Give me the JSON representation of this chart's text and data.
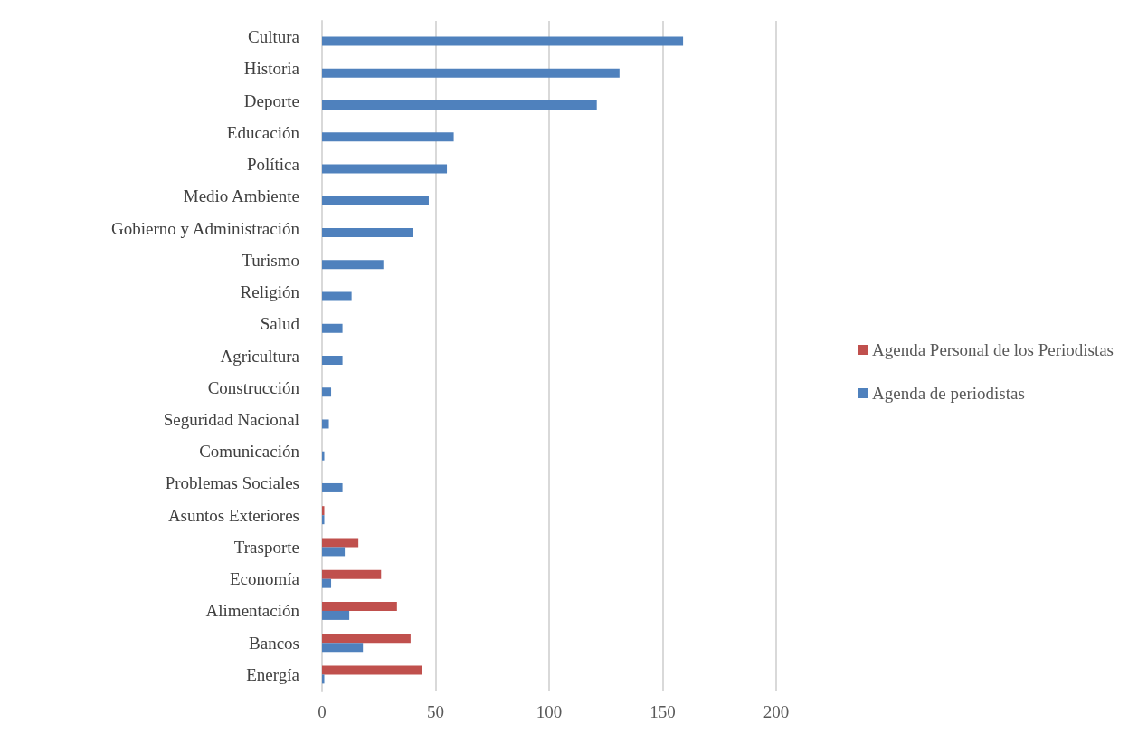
{
  "chart_data": {
    "type": "bar",
    "orientation": "horizontal",
    "categories": [
      "Cultura",
      "Historia",
      "Deporte",
      "Educación",
      "Política",
      "Medio Ambiente",
      "Gobierno y Administración",
      "Turismo",
      "Religión",
      "Salud",
      "Agricultura",
      "Construcción",
      "Seguridad Nacional",
      "Comunicación",
      "Problemas Sociales",
      "Asuntos Exteriores",
      "Trasporte",
      "Economía",
      "Alimentación",
      "Bancos",
      "Energía"
    ],
    "series": [
      {
        "name": "Agenda Personal de los Periodistas",
        "color": "#c0504d",
        "values": [
          0,
          0,
          0,
          0,
          0,
          0,
          0,
          0,
          0,
          0,
          0,
          0,
          0,
          0,
          0,
          1,
          16,
          26,
          33,
          39,
          44
        ]
      },
      {
        "name": "Agenda de periodistas",
        "color": "#4f81bd",
        "values": [
          159,
          131,
          121,
          58,
          55,
          47,
          40,
          27,
          13,
          9,
          9,
          4,
          3,
          1,
          9,
          1,
          10,
          4,
          12,
          18,
          1
        ]
      }
    ],
    "xlim": [
      0,
      200
    ],
    "xticks": [
      0,
      50,
      100,
      150,
      200
    ],
    "grid": "x",
    "legend": "right"
  }
}
